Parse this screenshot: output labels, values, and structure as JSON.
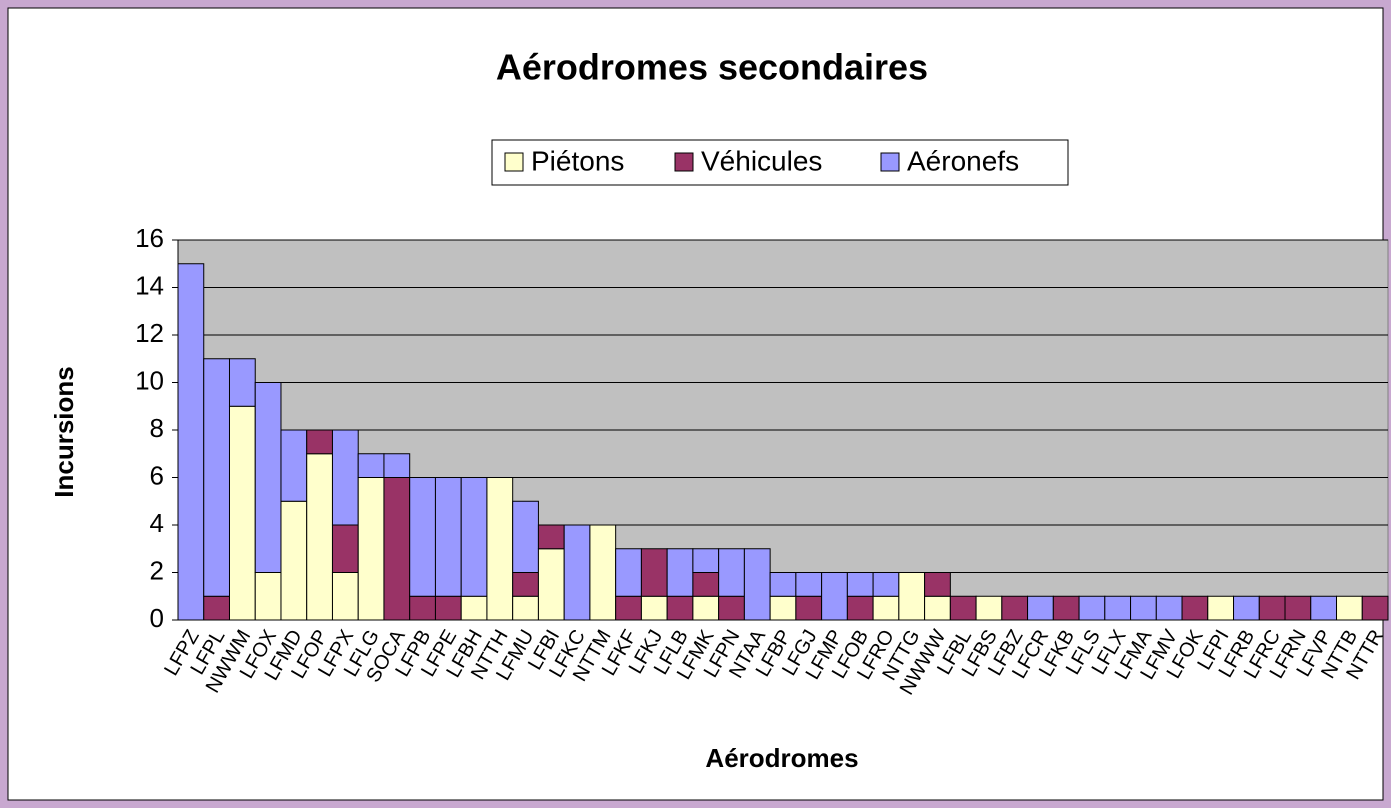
{
  "chart_data": {
    "type": "stacked_bar",
    "title": "Aérodromes secondaires",
    "x_label": "Aérodromes",
    "y_label": "Incursions",
    "categories": [
      "LFPZ",
      "LFPL",
      "NWWM",
      "LFOX",
      "LFMD",
      "LFOP",
      "LFPX",
      "LFLG",
      "SOCA",
      "LFPB",
      "LFPE",
      "LFBH",
      "NTTH",
      "LFMU",
      "LFBI",
      "LFKC",
      "NTTM",
      "LFKF",
      "LFKJ",
      "LFLB",
      "LFMK",
      "LFPN",
      "NTAA",
      "LFBP",
      "LFGJ",
      "LFMP",
      "LFOB",
      "LFRO",
      "NTTG",
      "NWWW",
      "LFBL",
      "LFBS",
      "LFBZ",
      "LFCR",
      "LFKB",
      "LFLS",
      "LFLX",
      "LFMA",
      "LFMV",
      "LFOK",
      "LFPI",
      "LFRB",
      "LFRC",
      "LFRN",
      "LFVP",
      "NTTB",
      "NTTR"
    ],
    "series": [
      {
        "name": "Piétons",
        "color": "#ffffcc",
        "values": [
          0,
          0,
          9,
          2,
          5,
          7,
          2,
          6,
          0,
          0,
          0,
          1,
          6,
          1,
          3,
          0,
          4,
          0,
          1,
          0,
          1,
          0,
          0,
          1,
          0,
          0,
          0,
          1,
          2,
          1,
          0,
          1,
          0,
          0,
          0,
          0,
          0,
          0,
          0,
          0,
          1,
          0,
          0,
          0,
          0,
          1,
          0
        ]
      },
      {
        "name": "Véhicules",
        "color": "#993366",
        "values": [
          0,
          1,
          0,
          0,
          0,
          1,
          2,
          0,
          6,
          1,
          1,
          0,
          0,
          1,
          1,
          0,
          0,
          1,
          2,
          1,
          1,
          1,
          0,
          0,
          1,
          0,
          1,
          0,
          0,
          1,
          1,
          0,
          1,
          0,
          1,
          0,
          0,
          0,
          0,
          1,
          0,
          0,
          1,
          1,
          0,
          0,
          1
        ]
      },
      {
        "name": "Aéronefs",
        "color": "#9999ff",
        "values": [
          15,
          10,
          2,
          8,
          3,
          0,
          4,
          1,
          1,
          5,
          5,
          5,
          0,
          3,
          0,
          4,
          0,
          2,
          0,
          2,
          1,
          2,
          3,
          1,
          1,
          2,
          1,
          1,
          0,
          0,
          0,
          0,
          0,
          1,
          0,
          1,
          1,
          1,
          1,
          0,
          0,
          1,
          0,
          0,
          1,
          0,
          0
        ]
      }
    ],
    "ylim": [
      0,
      16
    ],
    "yticks": [
      0,
      2,
      4,
      6,
      8,
      10,
      12,
      14,
      16
    ],
    "grid": true,
    "legend": "top"
  }
}
